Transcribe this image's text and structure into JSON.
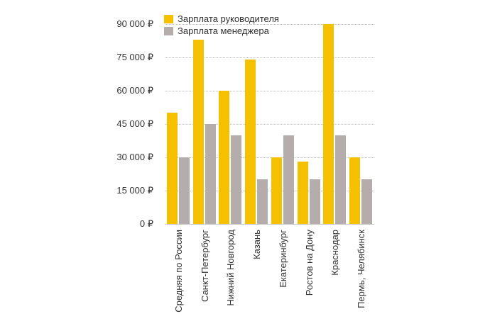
{
  "chart_data": {
    "type": "bar",
    "title": "",
    "xlabel": "",
    "ylabel": "",
    "ylim": [
      0,
      90000
    ],
    "grid": true,
    "legend_position": "top",
    "y_ticks": [
      "0 ₽",
      "15 000 ₽",
      "30 000 ₽",
      "45 000 ₽",
      "60 000 ₽",
      "75 000 ₽",
      "90 000 ₽"
    ],
    "y_tick_values": [
      0,
      15000,
      30000,
      45000,
      60000,
      75000,
      90000
    ],
    "categories": [
      "Средняя по России",
      "Санкт-Петербург",
      "Нижний Новгород",
      "Казань",
      "Екатеринбург",
      "Ростов на Дону",
      "Краснодар",
      "Пермь, Челябинск"
    ],
    "series": [
      {
        "name": "Зарплата  руководителя",
        "color": "#F5C000",
        "values": [
          50000,
          83000,
          60000,
          74000,
          30000,
          28000,
          90000,
          30000
        ]
      },
      {
        "name": "Зарплата менеджера",
        "color": "#B5ACAC",
        "values": [
          30000,
          45000,
          40000,
          20000,
          40000,
          20000,
          40000,
          20000
        ]
      }
    ]
  }
}
